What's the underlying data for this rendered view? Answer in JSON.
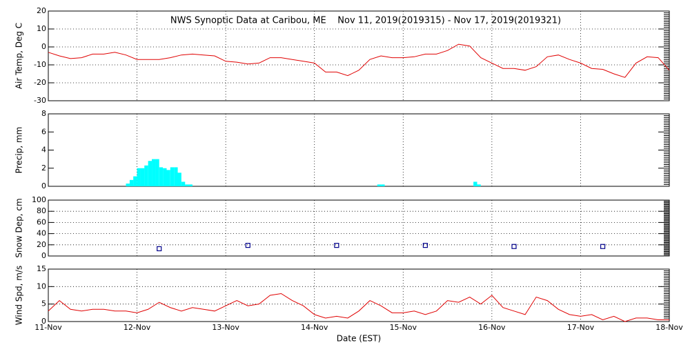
{
  "chart_data": [
    {
      "type": "line",
      "title": "NWS Synoptic Data at Caribou, ME    Nov 11, 2019(2019315) - Nov 17, 2019(2019321)",
      "ylabel": "Air Temp, Deg C",
      "color": "#e00000",
      "grid": "both",
      "xlim": [
        0,
        7
      ],
      "xticks": [
        0,
        1,
        2,
        3,
        4,
        5,
        6,
        7
      ],
      "ylim": [
        -30,
        20
      ],
      "yticks": [
        -30,
        -20,
        -10,
        0,
        10,
        20
      ],
      "x": [
        0,
        0.125,
        0.25,
        0.375,
        0.5,
        0.625,
        0.75,
        0.875,
        1,
        1.125,
        1.25,
        1.375,
        1.5,
        1.625,
        1.75,
        1.875,
        2,
        2.125,
        2.25,
        2.375,
        2.5,
        2.625,
        2.75,
        2.875,
        3,
        3.125,
        3.25,
        3.375,
        3.5,
        3.625,
        3.75,
        3.875,
        4,
        4.125,
        4.25,
        4.375,
        4.5,
        4.625,
        4.75,
        4.875,
        5,
        5.125,
        5.25,
        5.375,
        5.5,
        5.625,
        5.75,
        5.875,
        6,
        6.125,
        6.25,
        6.375,
        6.5,
        6.625,
        6.75,
        6.875,
        7
      ],
      "values": [
        -3,
        -5,
        -6.5,
        -6,
        -4,
        -4,
        -3,
        -4.5,
        -7,
        -7,
        -7,
        -6,
        -4.5,
        -4,
        -4.5,
        -5,
        -8,
        -8.5,
        -9.5,
        -9,
        -6,
        -6,
        -7,
        -8,
        -9,
        -14,
        -14,
        -16,
        -13,
        -7,
        -5,
        -6,
        -6,
        -5.5,
        -4,
        -4,
        -2,
        1.5,
        0.5,
        -6,
        -9,
        -12,
        -12,
        -13,
        -11,
        -5.5,
        -4.5,
        -7,
        -9,
        -12,
        -12.5,
        -15,
        -17,
        -9,
        -5.5,
        -6,
        -13
      ]
    },
    {
      "type": "bar",
      "ylabel": "Precip, mm",
      "color": "#00ffff",
      "grid": "x",
      "xlim": [
        0,
        7
      ],
      "xticks": [
        0,
        1,
        2,
        3,
        4,
        5,
        6,
        7
      ],
      "ylim": [
        0,
        8
      ],
      "yticks": [
        0,
        2,
        4,
        6,
        8
      ],
      "x": [
        0.875,
        0.917,
        0.958,
        1,
        1.042,
        1.083,
        1.125,
        1.167,
        1.208,
        1.25,
        1.292,
        1.333,
        1.375,
        1.417,
        1.458,
        1.5,
        1.542,
        1.583,
        3.708,
        3.75,
        4.792,
        4.833
      ],
      "values": [
        0.3,
        0.7,
        1.1,
        2.0,
        2.0,
        2.3,
        2.8,
        3.0,
        3.0,
        2.1,
        2.0,
        1.8,
        2.1,
        2.1,
        1.5,
        0.5,
        0.2,
        0.2,
        0.2,
        0.2,
        0.5,
        0.2
      ]
    },
    {
      "type": "scatter",
      "ylabel": "Snow Dep, cm",
      "color": "#00008b",
      "grid": "both",
      "xlim": [
        0,
        7
      ],
      "xticks": [
        0,
        1,
        2,
        3,
        4,
        5,
        6,
        7
      ],
      "ylim": [
        0,
        100
      ],
      "yticks": [
        0,
        20,
        40,
        60,
        80,
        100
      ],
      "x": [
        1.25,
        2.25,
        3.25,
        4.25,
        5.25,
        6.25
      ],
      "values": [
        13,
        19,
        19,
        19,
        17,
        17
      ]
    },
    {
      "type": "line",
      "ylabel": "Wind Spd, m/s",
      "xlabel": "Date (EST)",
      "color": "#e00000",
      "grid": "both",
      "xlim": [
        0,
        7
      ],
      "xticks": [
        {
          "value": 0,
          "label": "11-Nov"
        },
        {
          "value": 1,
          "label": "12-Nov"
        },
        {
          "value": 2,
          "label": "13-Nov"
        },
        {
          "value": 3,
          "label": "14-Nov"
        },
        {
          "value": 4,
          "label": "15-Nov"
        },
        {
          "value": 5,
          "label": "16-Nov"
        },
        {
          "value": 6,
          "label": "17-Nov"
        },
        {
          "value": 7,
          "label": "18-Nov"
        }
      ],
      "ylim": [
        0,
        15
      ],
      "yticks": [
        0,
        5,
        10,
        15
      ],
      "x": [
        0,
        0.125,
        0.25,
        0.375,
        0.5,
        0.625,
        0.75,
        0.875,
        1,
        1.125,
        1.25,
        1.375,
        1.5,
        1.625,
        1.75,
        1.875,
        2,
        2.125,
        2.25,
        2.375,
        2.5,
        2.625,
        2.75,
        2.875,
        3,
        3.125,
        3.25,
        3.375,
        3.5,
        3.625,
        3.75,
        3.875,
        4,
        4.125,
        4.25,
        4.375,
        4.5,
        4.625,
        4.75,
        4.875,
        5,
        5.125,
        5.25,
        5.375,
        5.5,
        5.625,
        5.75,
        5.875,
        6,
        6.125,
        6.25,
        6.375,
        6.5,
        6.625,
        6.75,
        6.875,
        7
      ],
      "values": [
        3,
        6,
        3.5,
        3,
        3.5,
        3.5,
        3,
        3,
        2.5,
        3.5,
        5.5,
        4,
        3,
        4,
        3.5,
        3,
        4.5,
        6,
        4.5,
        5,
        7.5,
        8,
        6,
        4.5,
        2,
        1,
        1.5,
        1,
        3,
        6,
        4.5,
        2.5,
        2.5,
        3,
        2,
        3,
        6,
        5.5,
        7,
        5,
        7.5,
        4,
        3,
        2,
        7,
        6,
        3.5,
        2,
        1.5,
        2,
        0.5,
        1.5,
        0,
        1,
        1,
        0.5,
        0.5
      ]
    }
  ]
}
